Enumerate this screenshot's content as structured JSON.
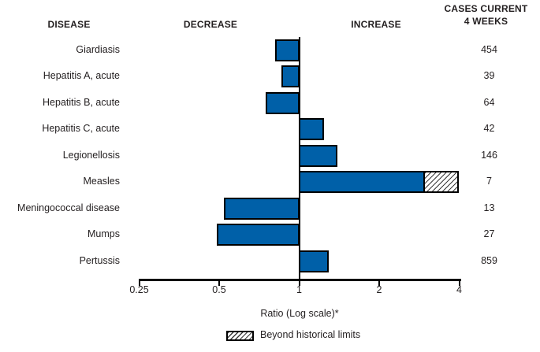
{
  "header": {
    "disease": "DISEASE",
    "decrease": "DECREASE",
    "increase": "INCREASE",
    "cases_line1": "CASES CURRENT",
    "cases_line2": "4 WEEKS"
  },
  "chart_data": {
    "type": "bar",
    "orientation": "horizontal",
    "scale": "log2",
    "baseline_ratio": 1,
    "xlabel": "Ratio (Log scale)*",
    "x_ticks": [
      0.25,
      0.5,
      1,
      2,
      4
    ],
    "xlim": [
      0.25,
      4
    ],
    "legend": {
      "label": "Beyond historical limits",
      "style": "hatched"
    },
    "rows": [
      {
        "disease": "Giardiasis",
        "ratio": 0.81,
        "cases": 454
      },
      {
        "disease": "Hepatitis A, acute",
        "ratio": 0.86,
        "cases": 39
      },
      {
        "disease": "Hepatitis B, acute",
        "ratio": 0.75,
        "cases": 64
      },
      {
        "disease": "Hepatitis C, acute",
        "ratio": 1.24,
        "cases": 42
      },
      {
        "disease": "Legionellosis",
        "ratio": 1.39,
        "cases": 146
      },
      {
        "disease": "Measles",
        "ratio": 2.98,
        "cases": 7,
        "beyond_limits": true,
        "beyond_to": 4.0
      },
      {
        "disease": "Meningococcal disease",
        "ratio": 0.52,
        "cases": 13
      },
      {
        "disease": "Mumps",
        "ratio": 0.49,
        "cases": 27
      },
      {
        "disease": "Pertussis",
        "ratio": 1.29,
        "cases": 859
      }
    ],
    "colors": {
      "bar_fill": "#0060A8",
      "bar_border": "#000000",
      "text": "#231F20",
      "hatch_line": "#3a3a3a"
    }
  }
}
